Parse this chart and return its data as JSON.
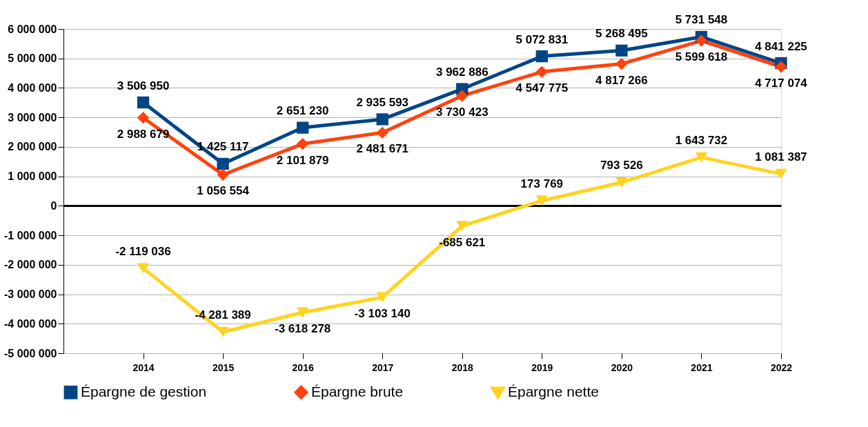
{
  "chart_data": {
    "type": "line",
    "categories": [
      "2014",
      "2015",
      "2016",
      "2017",
      "2018",
      "2019",
      "2020",
      "2021",
      "2022"
    ],
    "series": [
      {
        "name": "Épargne de gestion",
        "color": "#004586",
        "marker": "square",
        "values": [
          3506950,
          1425117,
          2651230,
          2935593,
          3962886,
          5072831,
          5268495,
          5731548,
          4841225
        ]
      },
      {
        "name": "Épargne brute",
        "color": "#ff420e",
        "marker": "diamond",
        "values": [
          2988679,
          1056554,
          2101879,
          2481671,
          3730423,
          4547775,
          4817266,
          5599618,
          4717074
        ]
      },
      {
        "name": "Épargne nette",
        "color": "#ffd320",
        "marker": "triangle",
        "values": [
          -2119036,
          -4281389,
          -3618278,
          -3103140,
          -685621,
          173769,
          793526,
          1643732,
          1081387
        ]
      }
    ],
    "ylim": [
      -5000000,
      6000000
    ],
    "yticks": [
      {
        "value": -5000000,
        "label": "-5 000 000"
      },
      {
        "value": -4000000,
        "label": "-4 000 000"
      },
      {
        "value": -3000000,
        "label": "-3 000 000"
      },
      {
        "value": -2000000,
        "label": "-2 000 000"
      },
      {
        "value": -1000000,
        "label": "-1 000 000"
      },
      0,
      {
        "value": 1000000,
        "label": "1 000 000"
      },
      {
        "value": 2000000,
        "label": "2 000 000"
      },
      {
        "value": 3000000,
        "label": "3 000 000"
      },
      {
        "value": 4000000,
        "label": "4 000 000"
      },
      {
        "value": 5000000,
        "label": "5 000 000"
      },
      {
        "value": 6000000,
        "label": "6 000 000"
      }
    ],
    "grid": "y",
    "legend": "bottom",
    "data_labels": true,
    "line_style": "solid"
  }
}
